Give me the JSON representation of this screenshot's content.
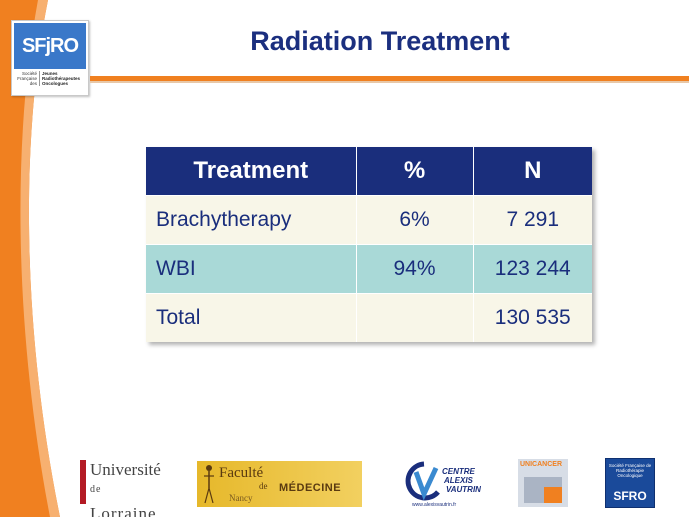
{
  "header": {
    "title": "Radiation Treatment",
    "logo": {
      "main": "SFjRO",
      "left_lines": [
        "Société",
        "Française",
        "des"
      ],
      "right_lines": [
        "Jeunes",
        "Radiothérapeutes",
        "Oncologues"
      ]
    }
  },
  "table": {
    "columns": [
      "Treatment",
      "%",
      "N"
    ],
    "rows": [
      {
        "treatment": "Brachytherapy",
        "percent": "6%",
        "n": "7 291"
      },
      {
        "treatment": "WBI",
        "percent": "94%",
        "n": "123 244"
      },
      {
        "treatment": "Total",
        "percent": "",
        "n": "130 535"
      }
    ]
  },
  "footer": {
    "universite": {
      "line1": "Université",
      "line2": "Lorraine",
      "de": "de"
    },
    "faculte": {
      "line1": "Faculté",
      "de": "de",
      "line2": "MÉDECINE",
      "city": "Nancy"
    },
    "centre": {
      "line1": "CENTRE",
      "line2": "ALEXIS",
      "line3": "VAUTRIN",
      "url": "www.alexisvautrin.fr"
    },
    "unicancer": {
      "label": "UNICANCER"
    },
    "sfro": {
      "subtitle": "Société Française de Radiothérapie Oncologique",
      "label": "SFRO"
    }
  },
  "colors": {
    "title": "#1b2f7f",
    "accent_orange": "#f08020",
    "header_row": "#1a2e7c",
    "row_light": "#f8f6e8",
    "row_teal": "#a9d9d7"
  }
}
